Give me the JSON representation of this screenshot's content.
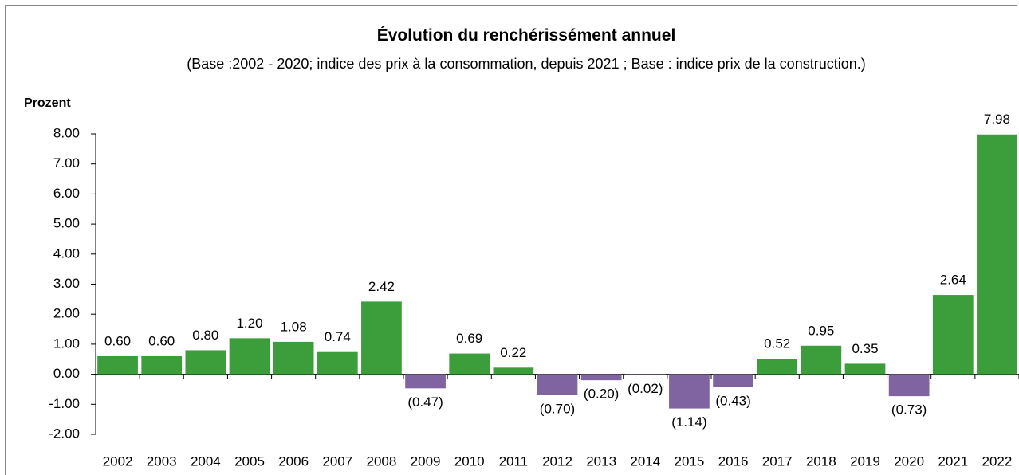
{
  "chart_data": {
    "type": "bar",
    "title": "Évolution du renchérissément annuel",
    "subtitle": "(Base :2002 - 2020; indice des prix à la consommation, depuis 2021 ; Base : indice prix de la construction.)",
    "y_label": "Prozent",
    "categories": [
      "2002",
      "2003",
      "2004",
      "2005",
      "2006",
      "2007",
      "2008",
      "2009",
      "2010",
      "2011",
      "2012",
      "2013",
      "2014",
      "2015",
      "2016",
      "2017",
      "2018",
      "2019",
      "2020",
      "2021",
      "2022"
    ],
    "values": [
      0.6,
      0.6,
      0.8,
      1.2,
      1.08,
      0.74,
      2.42,
      -0.47,
      0.69,
      0.22,
      -0.7,
      -0.2,
      -0.02,
      -1.14,
      -0.43,
      0.52,
      0.95,
      0.35,
      -0.73,
      2.64,
      7.98
    ],
    "value_labels": [
      "0.60",
      "0.60",
      "0.80",
      "1.20",
      "1.08",
      "0.74",
      "2.42",
      "(0.47)",
      "0.69",
      "0.22",
      "(0.70)",
      "(0.20)",
      "(0.02)",
      "(1.14)",
      "(0.43)",
      "0.52",
      "0.95",
      "0.35",
      "(0.73)",
      "2.64",
      "7.98"
    ],
    "color": "#3b9e3b",
    "negative_color": "#8064a2",
    "ylim": [
      -2,
      8
    ],
    "yticks": [
      {
        "value": -2,
        "label": "-2.00"
      },
      {
        "value": -1,
        "label": "-1.00"
      },
      {
        "value": 0,
        "label": "0.00"
      },
      {
        "value": 1,
        "label": "1.00"
      },
      {
        "value": 2,
        "label": "2.00"
      },
      {
        "value": 3,
        "label": "3.00"
      },
      {
        "value": 4,
        "label": "4.00"
      },
      {
        "value": 5,
        "label": "5.00"
      },
      {
        "value": 6,
        "label": "6.00"
      },
      {
        "value": 7,
        "label": "7.00"
      },
      {
        "value": 8,
        "label": "8.00"
      }
    ],
    "grid": false
  }
}
